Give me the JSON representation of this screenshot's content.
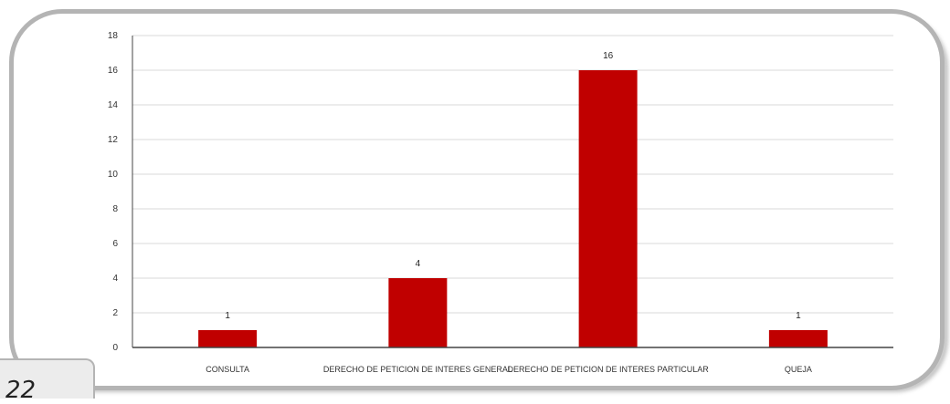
{
  "page": {
    "number": "22"
  },
  "colors": {
    "bar": "#c00000",
    "grid": "#d9d9d9",
    "axis": "#444444"
  },
  "chart_data": {
    "type": "bar",
    "categories": [
      "CONSULTA",
      "DERECHO DE PETICION DE INTERES GENERAL",
      "DERECHO DE PETICION DE INTERES PARTICULAR",
      "QUEJA"
    ],
    "values": [
      1,
      4,
      16,
      1
    ],
    "data_labels": [
      "1",
      "4",
      "16",
      "1"
    ],
    "yticks": [
      0,
      2,
      4,
      6,
      8,
      10,
      12,
      14,
      16,
      18
    ],
    "ylim": [
      0,
      18
    ],
    "grid": true,
    "legend": "none",
    "title": "",
    "xlabel": "",
    "ylabel": ""
  }
}
